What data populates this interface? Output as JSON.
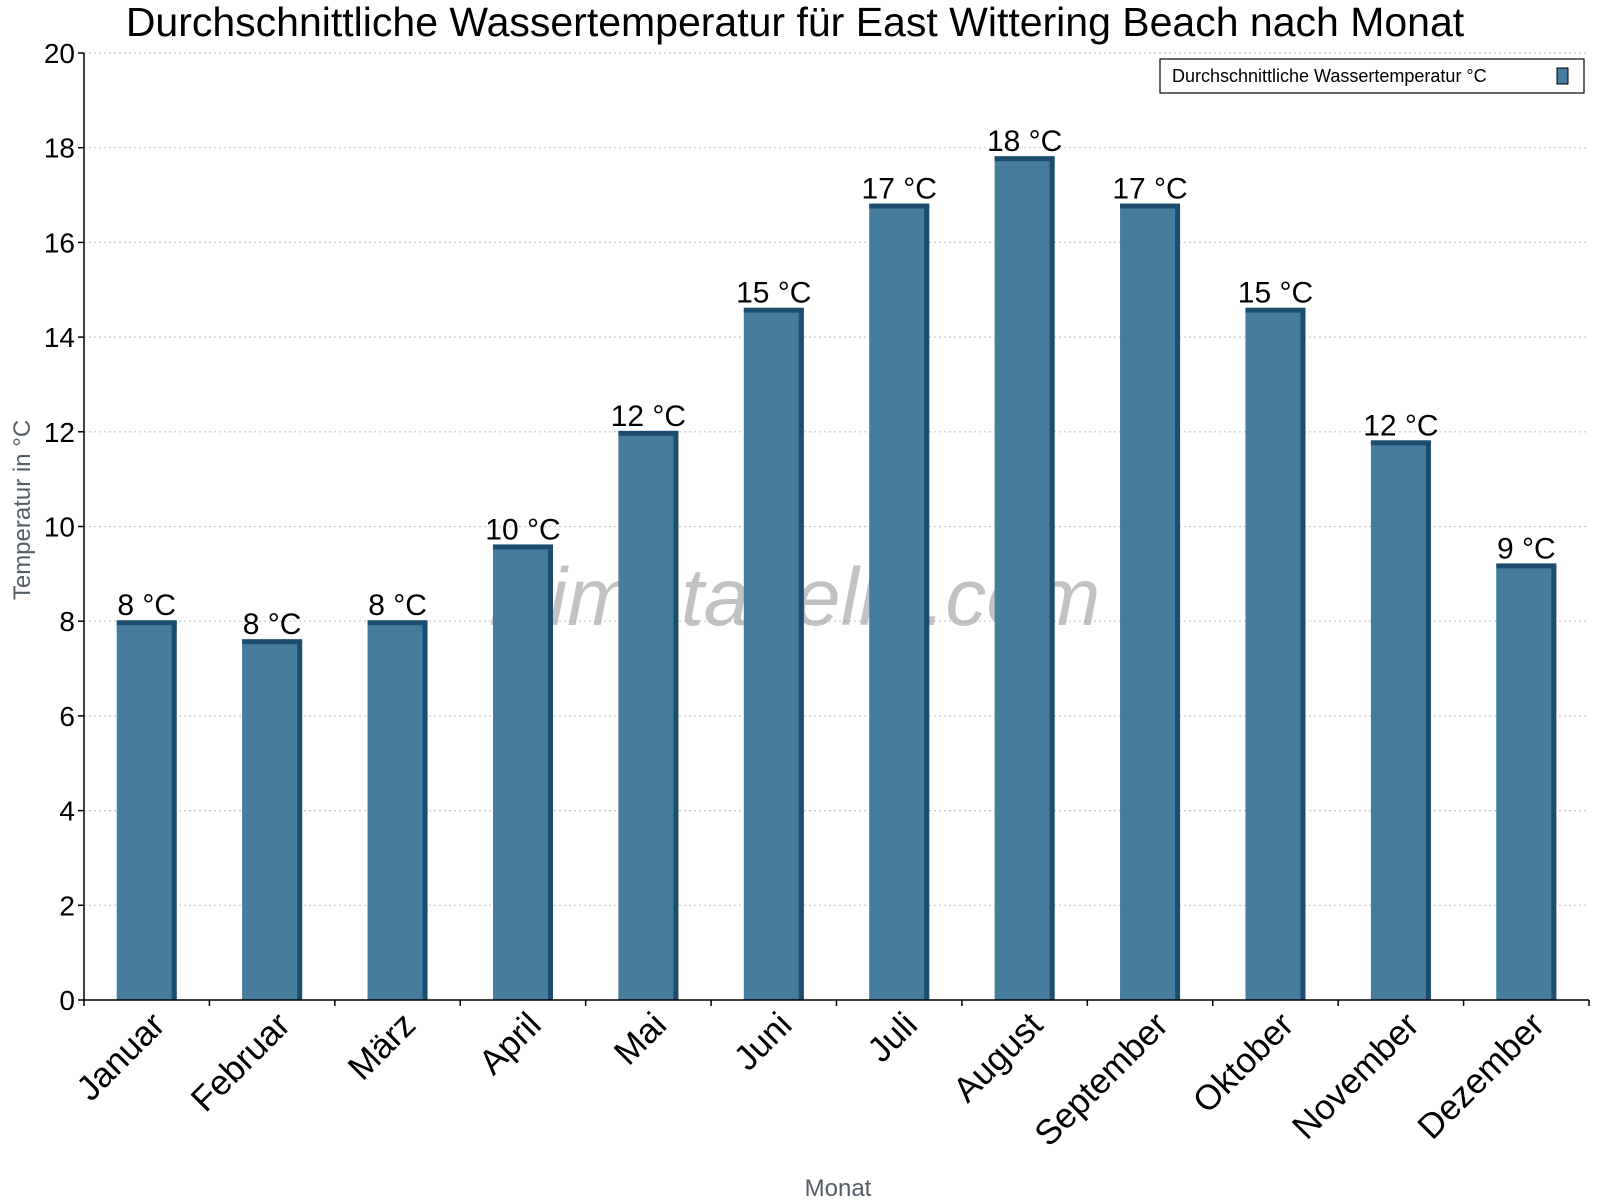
{
  "chart_data": {
    "type": "bar",
    "title": "Durchschnittliche Wassertemperatur für East Wittering Beach nach Monat",
    "xlabel": "Monat",
    "ylabel": "Temperatur in °C",
    "ylim": [
      0,
      20
    ],
    "ytick_step": 2,
    "y_ticks": [
      "0",
      "2",
      "4",
      "6",
      "8",
      "10",
      "12",
      "14",
      "16",
      "18",
      "20"
    ],
    "grid": "horizontal dotted",
    "legend_position": "top-right",
    "watermark": "klimatabelle.com",
    "categories": [
      "Januar",
      "Februar",
      "März",
      "April",
      "Mai",
      "Juni",
      "Juli",
      "August",
      "September",
      "Oktober",
      "November",
      "Dezember"
    ],
    "series": [
      {
        "name": "Durchschnittliche Wassertemperatur °C",
        "color": "#467c9e",
        "shade_color": "#1d4d6e",
        "values": [
          8.0,
          7.6,
          8.0,
          9.6,
          12.0,
          14.6,
          16.8,
          17.8,
          16.8,
          14.6,
          11.8,
          9.2
        ],
        "labels": [
          "8 °C",
          "8 °C",
          "8 °C",
          "10 °C",
          "12 °C",
          "15 °C",
          "17 °C",
          "18 °C",
          "17 °C",
          "15 °C",
          "12 °C",
          "9 °C"
        ]
      }
    ]
  }
}
